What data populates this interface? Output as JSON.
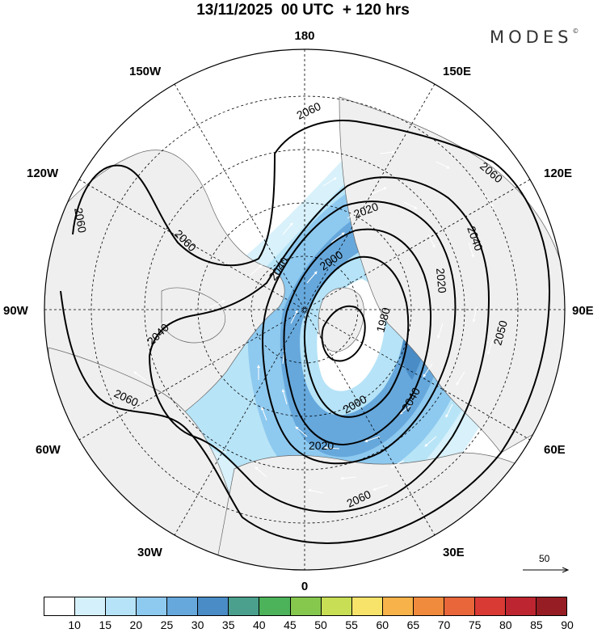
{
  "header": {
    "title": "13/11/2025  00 UTC  + 120 hrs",
    "brand": "MODES"
  },
  "map": {
    "projection": "polar-stereographic-north",
    "longitude_labels": {
      "top": "180",
      "bottom": "0",
      "left": "90W",
      "right": "90E",
      "upper_left": "150W",
      "upper_right": "150E",
      "mid_upper_left": "120W",
      "mid_upper_right": "120E",
      "lower_left": "60W",
      "lower_right": "60E",
      "bottom_left": "30W",
      "bottom_right": "30E"
    },
    "contour_labels": [
      "2060",
      "2060",
      "2060",
      "2060",
      "2060",
      "2060",
      "2040",
      "2040",
      "2040",
      "2040",
      "2020",
      "2020",
      "2020",
      "2000",
      "2000",
      "1980",
      "2050"
    ],
    "colors": {
      "land": "#efefef",
      "ocean": "#ffffff",
      "coast": "#666666",
      "contour": "#000000",
      "wind_arrow": "#ffffff"
    }
  },
  "reference_vector": {
    "label": "50"
  },
  "colorbar": {
    "labels": [
      "10",
      "15",
      "20",
      "25",
      "30",
      "35",
      "40",
      "45",
      "50",
      "55",
      "60",
      "65",
      "70",
      "75",
      "80",
      "85",
      "90"
    ],
    "colors": [
      "#ffffff",
      "#d4f0fb",
      "#b6e3f7",
      "#8ec9ef",
      "#66a8dc",
      "#4a8cc6",
      "#4aa08c",
      "#4cb35a",
      "#86c74e",
      "#c7de55",
      "#f7e36a",
      "#f7b24a",
      "#f08a3c",
      "#e8663a",
      "#d93a34",
      "#bd2630",
      "#951d23"
    ]
  }
}
